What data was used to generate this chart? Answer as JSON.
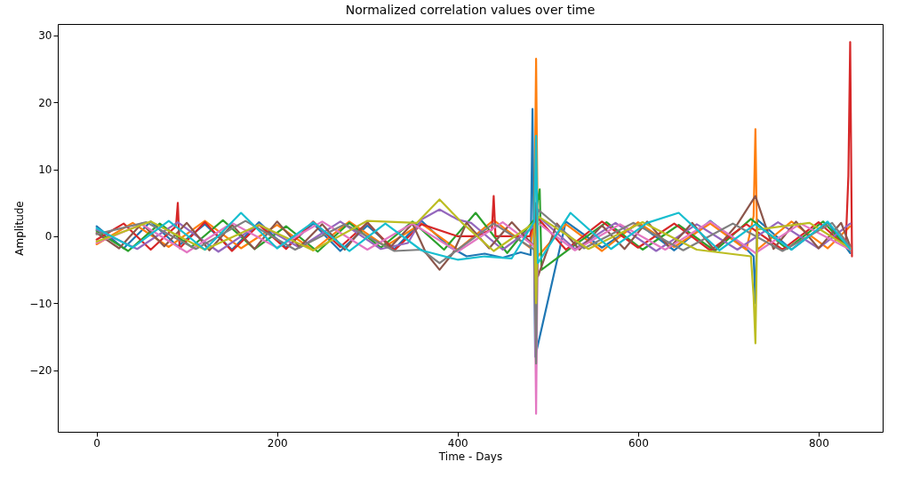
{
  "chart_data": {
    "type": "line",
    "title": "Normalized correlation values over time",
    "xlabel": "Time - Days",
    "ylabel": "Amplitude",
    "xlim": [
      -43,
      871
    ],
    "ylim": [
      -29.2,
      31.7
    ],
    "xticks": [
      0,
      200,
      400,
      600,
      800
    ],
    "yticks": [
      -20,
      -10,
      0,
      10,
      20,
      30
    ],
    "grid": false,
    "line_style": "solid",
    "marker": "none",
    "series": [
      {
        "color": "#1f77b4",
        "x": [
          0,
          30,
          60,
          90,
          120,
          150,
          180,
          210,
          240,
          270,
          300,
          330,
          360,
          390,
          410,
          430,
          450,
          470,
          481,
          483,
          486,
          520,
          560,
          600,
          640,
          680,
          720,
          728,
          730,
          732,
          770,
          810,
          835
        ],
        "values": [
          1.5,
          -1.8,
          2.2,
          -1.5,
          1.8,
          -2.0,
          2.1,
          -1.7,
          1.9,
          -2.2,
          1.6,
          -1.9,
          2.3,
          -1.5,
          -3.0,
          -2.6,
          -3.2,
          -2.4,
          -2.8,
          19,
          -18,
          2.2,
          -1.7,
          1.9,
          -2.1,
          2.3,
          -1.9,
          -3,
          -10,
          2.5,
          -2.0,
          2.1,
          -2.5
        ]
      },
      {
        "color": "#ff7f0e",
        "x": [
          0,
          40,
          80,
          120,
          160,
          200,
          240,
          280,
          320,
          360,
          400,
          440,
          480,
          485,
          487,
          489,
          520,
          560,
          600,
          640,
          680,
          720,
          728,
          730,
          732,
          770,
          810,
          835
        ],
        "values": [
          -1.2,
          2.0,
          -1.6,
          2.3,
          -1.8,
          1.7,
          -2.1,
          2.2,
          -1.5,
          1.9,
          -2.0,
          2.4,
          -1.7,
          2.0,
          26.5,
          -3,
          1.8,
          -2.2,
          2.1,
          -1.6,
          1.9,
          -2.0,
          3,
          16,
          -2,
          2.2,
          -1.8,
          1.5
        ]
      },
      {
        "color": "#2ca02c",
        "x": [
          0,
          35,
          70,
          105,
          140,
          175,
          210,
          245,
          280,
          315,
          350,
          385,
          420,
          455,
          485,
          491,
          493,
          525,
          565,
          605,
          645,
          685,
          725,
          765,
          805,
          835
        ],
        "values": [
          0.8,
          -2.2,
          1.9,
          -1.6,
          2.4,
          -1.9,
          1.5,
          -2.3,
          2.0,
          -1.7,
          2.2,
          -2.0,
          3.5,
          -2.5,
          2.5,
          7,
          -5,
          -1.8,
          2.1,
          -2.0,
          1.7,
          -2.2,
          2.6,
          -1.9,
          2.2,
          -2.1
        ]
      },
      {
        "color": "#d62728",
        "x": [
          0,
          30,
          60,
          88,
          90,
          92,
          120,
          150,
          180,
          210,
          240,
          270,
          300,
          330,
          360,
          400,
          420,
          438,
          440,
          442,
          460,
          480,
          487,
          520,
          560,
          600,
          640,
          680,
          720,
          760,
          800,
          830,
          833,
          835,
          837
        ],
        "values": [
          -0.5,
          1.9,
          -2.0,
          1.5,
          5,
          -1.8,
          2.1,
          -2.2,
          1.7,
          -1.9,
          2.2,
          -1.6,
          2.0,
          -2.1,
          1.8,
          0,
          0,
          1,
          6,
          0,
          0,
          0,
          3,
          -2.0,
          2.2,
          -1.7,
          1.9,
          -2.1,
          1.8,
          -2.0,
          2.1,
          -1.5,
          9,
          29,
          -3
        ]
      },
      {
        "color": "#9467bd",
        "x": [
          0,
          45,
          90,
          135,
          180,
          225,
          270,
          315,
          345,
          360,
          380,
          400,
          415,
          450,
          485,
          487,
          489,
          530,
          575,
          620,
          665,
          710,
          755,
          800,
          835
        ],
        "values": [
          1.0,
          -1.9,
          2.1,
          -2.3,
          1.8,
          -1.7,
          2.2,
          -1.9,
          -1.0,
          2.5,
          4,
          2.5,
          2.0,
          -2.0,
          1.5,
          -8,
          3,
          -1.9,
          2.0,
          -2.2,
          1.8,
          -2.0,
          2.1,
          -1.8,
          1.9
        ]
      },
      {
        "color": "#8c564b",
        "x": [
          0,
          25,
          50,
          75,
          100,
          125,
          150,
          175,
          200,
          225,
          250,
          275,
          300,
          325,
          350,
          365,
          380,
          395,
          410,
          435,
          460,
          485,
          487,
          489,
          510,
          535,
          560,
          585,
          610,
          635,
          660,
          685,
          710,
          730,
          750,
          775,
          800,
          825,
          835
        ],
        "values": [
          0.5,
          -1.8,
          1.9,
          -1.5,
          2.0,
          -2.1,
          1.7,
          -1.9,
          2.2,
          -1.6,
          1.8,
          -2.0,
          2.1,
          -1.7,
          1.9,
          -2.5,
          -5,
          -2.5,
          2.0,
          -1.8,
          2.1,
          -1.5,
          5,
          -6,
          1.9,
          -2.0,
          1.6,
          -1.9,
          2.2,
          -1.7,
          2.0,
          -2.1,
          1.8,
          6,
          -1.9,
          2.2,
          -1.8,
          2.0,
          -1.5
        ]
      },
      {
        "color": "#e377c2",
        "x": [
          0,
          50,
          100,
          150,
          200,
          250,
          300,
          350,
          400,
          450,
          485,
          487,
          489,
          530,
          580,
          630,
          680,
          730,
          780,
          835
        ],
        "values": [
          -1.0,
          1.8,
          -2.4,
          2.0,
          -1.7,
          2.2,
          -2.0,
          1.9,
          -2.3,
          2.1,
          -1.5,
          -26.5,
          2,
          -2.1,
          1.8,
          -2.0,
          2.2,
          -2.5,
          1.9,
          -2.0
        ]
      },
      {
        "color": "#7f7f7f",
        "x": [
          0,
          55,
          110,
          165,
          220,
          275,
          330,
          360,
          380,
          400,
          440,
          485,
          487,
          489,
          540,
          595,
          650,
          705,
          760,
          815,
          835
        ],
        "values": [
          0.3,
          2.1,
          -1.9,
          2.3,
          -2.0,
          1.8,
          -2.2,
          -2.0,
          -4,
          -2.0,
          1.9,
          -2.0,
          -19,
          4,
          -1.8,
          2.0,
          -2.1,
          1.9,
          -2.2,
          2.0,
          -1.6
        ]
      },
      {
        "color": "#bcbd22",
        "x": [
          0,
          60,
          120,
          180,
          240,
          300,
          355,
          380,
          405,
          440,
          485,
          487,
          489,
          545,
          605,
          665,
          725,
          728,
          730,
          732,
          790,
          835
        ],
        "values": [
          -0.8,
          2.2,
          -2.0,
          1.7,
          -2.1,
          2.3,
          2.0,
          5.5,
          2.0,
          -2.2,
          2.0,
          -10,
          3,
          -1.9,
          2.1,
          -2.0,
          -3,
          -9,
          -16,
          1,
          2.0,
          -1.8
        ]
      },
      {
        "color": "#17becf",
        "x": [
          0,
          40,
          80,
          120,
          160,
          200,
          240,
          280,
          320,
          360,
          400,
          430,
          460,
          485,
          487,
          489,
          525,
          570,
          610,
          645,
          690,
          730,
          770,
          810,
          835
        ],
        "values": [
          1.2,
          -1.7,
          2.3,
          -2.0,
          3.5,
          -1.8,
          2.1,
          -2.2,
          1.9,
          -2.1,
          -3.5,
          -3.0,
          -3.3,
          2.2,
          15,
          -4,
          3.5,
          -1.9,
          2.0,
          3.5,
          -2.1,
          1.8,
          -2.0,
          2.2,
          -1.9
        ]
      }
    ]
  }
}
